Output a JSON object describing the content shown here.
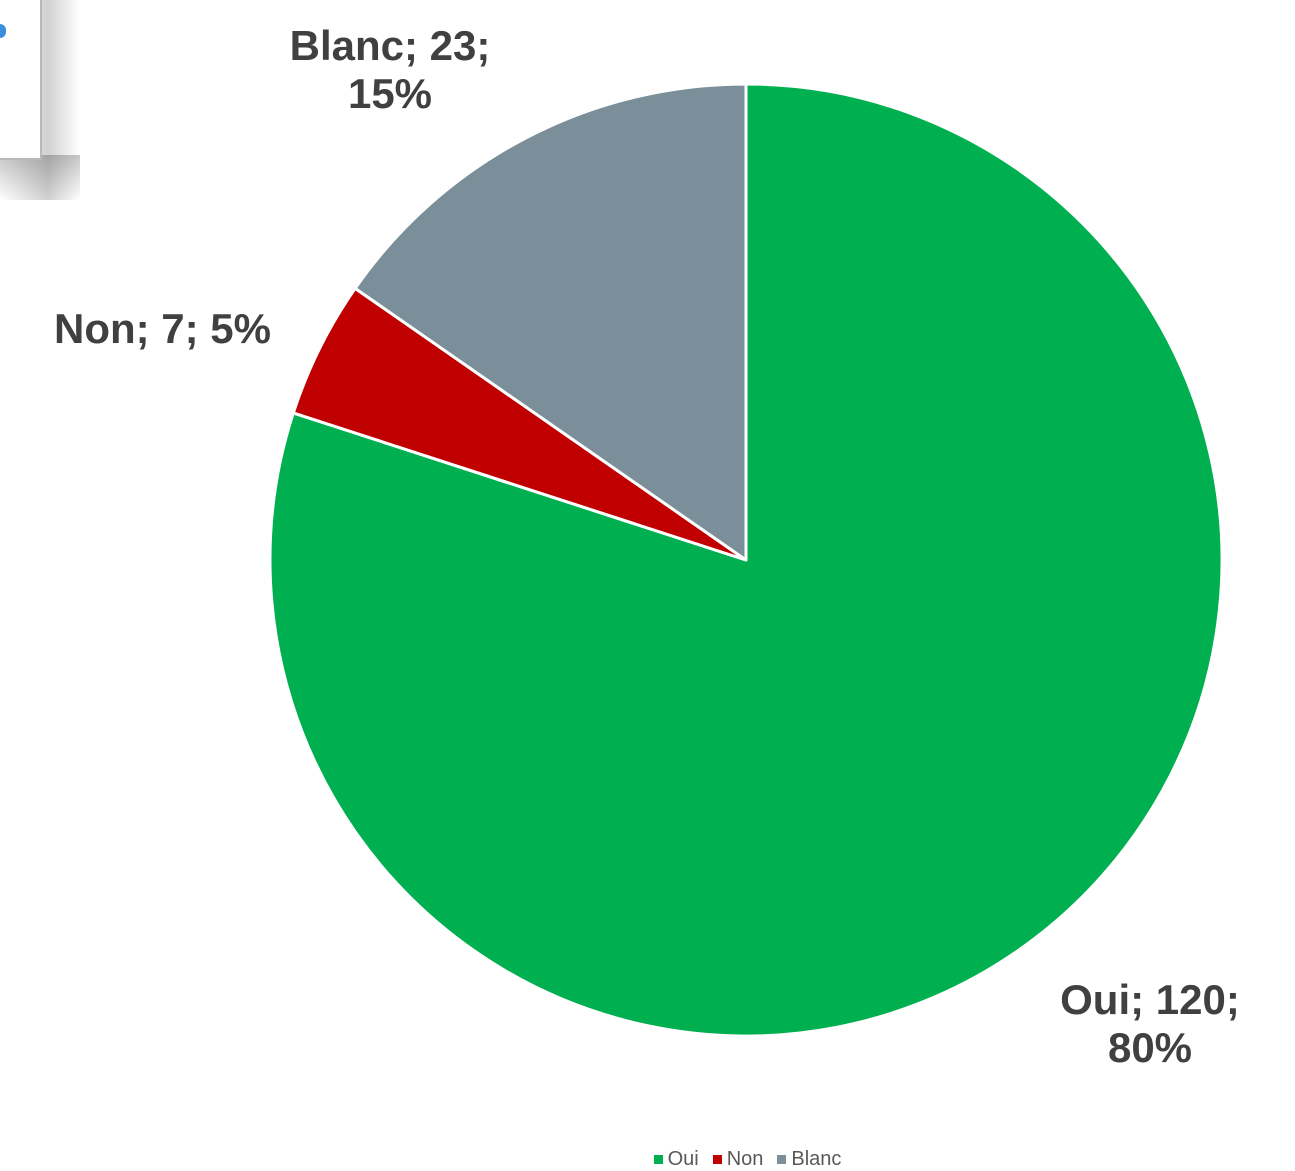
{
  "chart_data": {
    "type": "pie",
    "title": "",
    "slices": [
      {
        "name": "Oui",
        "value": 120,
        "percent": "80%",
        "label": "Oui; 120;\n80%",
        "color": "#00b050"
      },
      {
        "name": "Non",
        "value": 7,
        "percent": "5%",
        "label": "Non; 7; 5%",
        "color": "#c00000"
      },
      {
        "name": "Blanc",
        "value": 23,
        "percent": "15%",
        "label": "Blanc; 23;\n15%",
        "color": "#7a8f99"
      }
    ],
    "start_angle": "12 o'clock",
    "direction": "clockwise",
    "legend": {
      "position": "bottom",
      "entries": [
        "Oui",
        "Non",
        "Blanc"
      ]
    }
  }
}
